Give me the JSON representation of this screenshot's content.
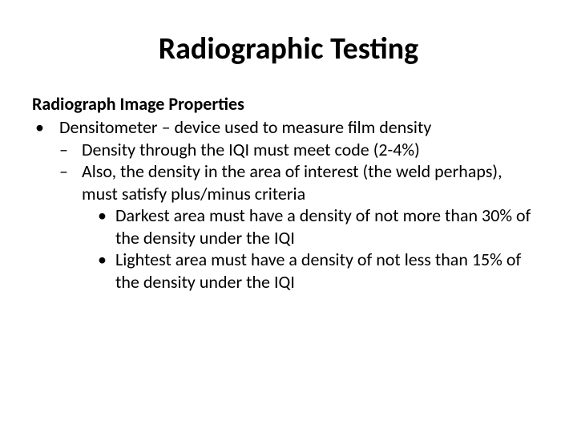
{
  "title": "Radiographic Testing",
  "section_heading": "Radiograph Image Properties",
  "l1": {
    "marker": "•",
    "text": "Densitometer – device used to measure film density"
  },
  "l2_a": {
    "marker": "–",
    "text": "Density through the IQI must meet code (2-4%)"
  },
  "l2_b": {
    "marker": "–",
    "text": "Also, the density in the area of interest (the weld perhaps), must satisfy plus/minus criteria"
  },
  "l3_a": {
    "marker": "•",
    "text": "Darkest area must have a density of not more than 30% of the density under the IQI"
  },
  "l3_b": {
    "marker": "•",
    "text": "Lightest area must have  a density of not less than 15% of the density under the IQI"
  },
  "style": {
    "background": "#ffffff",
    "text_color": "#000000",
    "title_fontsize": 38,
    "heading_fontsize": 22,
    "body_fontsize": 22,
    "font_family": "Calibri"
  }
}
